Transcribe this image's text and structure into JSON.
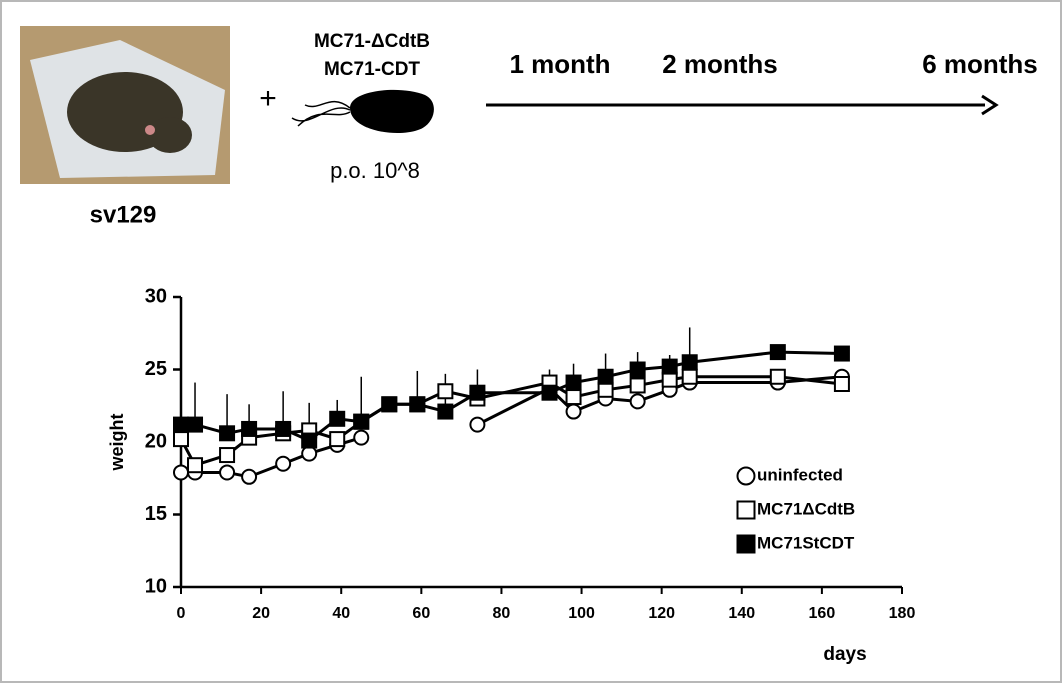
{
  "diagram": {
    "plus": "+",
    "treatment": [
      "MC71-ΔCdtB",
      "MC71-CDT"
    ],
    "dose": "p.o. 10^8",
    "strain": "sv129",
    "timeline": [
      "1 month",
      "2 months",
      "6 months"
    ]
  },
  "chart_data": {
    "type": "line",
    "y_label": "weight",
    "x_label": "days",
    "x": [
      0,
      3.5,
      11.5,
      17,
      25.5,
      32,
      39,
      45,
      52,
      59,
      66,
      74,
      92,
      98,
      106,
      114,
      122,
      127,
      149,
      165
    ],
    "xlim": [
      0,
      180
    ],
    "xticks": [
      0,
      20,
      40,
      60,
      80,
      100,
      120,
      140,
      160,
      180
    ],
    "ylim": [
      10,
      30
    ],
    "yticks": [
      10,
      15,
      20,
      25,
      30
    ],
    "series": [
      {
        "name": "uninfected",
        "color": "#000000",
        "fill": "#ffffff",
        "marker": "circle",
        "values": [
          17.9,
          17.9,
          17.9,
          17.6,
          18.5,
          19.2,
          19.8,
          20.3,
          null,
          null,
          null,
          21.2,
          23.7,
          22.1,
          23.0,
          22.8,
          23.6,
          24.1,
          24.1,
          24.5
        ]
      },
      {
        "name": "MC71ΔCdtB",
        "color": "#000000",
        "fill": "#ffffff",
        "marker": "square",
        "values": [
          20.2,
          18.4,
          19.1,
          20.3,
          20.6,
          20.8,
          20.2,
          21.4,
          22.6,
          22.6,
          23.5,
          23.0,
          24.1,
          23.1,
          23.6,
          23.9,
          24.3,
          24.5,
          24.5,
          24.0
        ]
      },
      {
        "name": "MC71StCDT",
        "color": "#000000",
        "fill": "#000000",
        "marker": "square",
        "values": [
          21.2,
          21.2,
          20.6,
          20.9,
          20.9,
          20.1,
          21.6,
          21.4,
          22.6,
          22.6,
          22.1,
          23.4,
          23.4,
          24.1,
          24.5,
          25.0,
          25.2,
          25.5,
          26.2,
          26.1
        ],
        "errors": [
          3.0,
          2.9,
          2.7,
          1.7,
          2.6,
          2.6,
          1.3,
          3.1,
          null,
          2.3,
          2.6,
          1.6,
          1.6,
          1.3,
          1.6,
          1.2,
          0.8,
          2.4,
          null,
          null
        ]
      }
    ]
  }
}
